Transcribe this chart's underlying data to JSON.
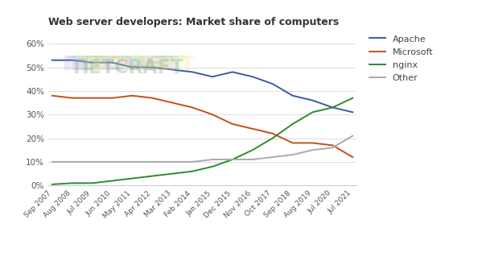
{
  "title": "Web server developers: Market share of computers",
  "x_labels": [
    "Sep 2007",
    "Aug 2008",
    "Jul 2009",
    "Jun 2010",
    "May 2011",
    "Apr 2012",
    "Mar 2013",
    "Feb 2014",
    "Jan 2015",
    "Dec 2015",
    "Nov 2016",
    "Oct 2017",
    "Sep 2018",
    "Aug 2019",
    "Jul 2020",
    "Jul 2021"
  ],
  "x_indices": [
    0,
    1,
    2,
    3,
    4,
    5,
    6,
    7,
    8,
    9,
    10,
    11,
    12,
    13,
    14,
    15
  ],
  "apache": [
    53,
    53,
    52,
    52,
    50,
    50,
    49,
    48,
    46,
    48,
    46,
    43,
    38,
    36,
    33,
    31
  ],
  "microsoft": [
    38,
    37,
    37,
    37,
    38,
    37,
    35,
    33,
    30,
    26,
    24,
    22,
    18,
    18,
    17,
    12
  ],
  "nginx": [
    0.5,
    1,
    1,
    2,
    3,
    4,
    5,
    6,
    8,
    11,
    15,
    20,
    26,
    31,
    33,
    37
  ],
  "other": [
    10,
    10,
    10,
    10,
    10,
    10,
    10,
    10,
    11,
    11,
    11,
    12,
    13,
    15,
    16,
    21
  ],
  "apache_color": "#3d5aa8",
  "microsoft_color": "#c0511a",
  "nginx_color": "#2d8b2d",
  "other_color": "#aaaaaa",
  "ylim": [
    0,
    65
  ],
  "yticks": [
    0,
    10,
    20,
    30,
    40,
    50,
    60
  ],
  "ytick_labels": [
    "0%",
    "10%",
    "20%",
    "30%",
    "40%",
    "50%",
    "60%"
  ],
  "bg_color": "#ffffff",
  "grid_color": "#dddddd",
  "legend_labels": [
    "Apache",
    "Microsoft",
    "nginx",
    "Other"
  ],
  "watermark_letter": "П",
  "watermark_suffix": "ETCRAFT"
}
